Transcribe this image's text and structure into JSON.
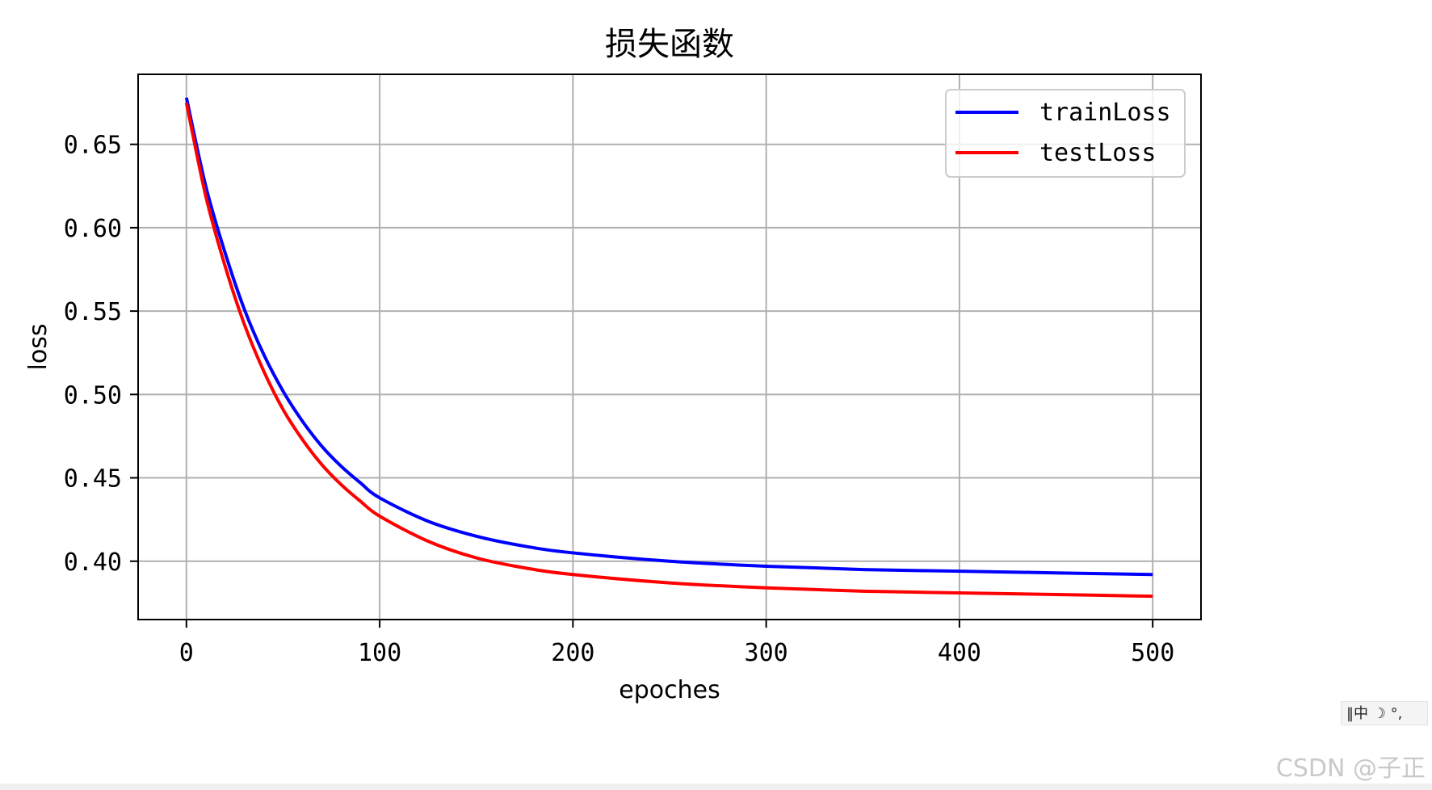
{
  "chart_data": {
    "type": "line",
    "title": "损失函数",
    "xlabel": "epoches",
    "ylabel": "loss",
    "xlim": [
      -25,
      525
    ],
    "ylim": [
      0.365,
      0.692
    ],
    "xticks": [
      0,
      100,
      200,
      300,
      400,
      500
    ],
    "xtick_labels": [
      "0",
      "100",
      "200",
      "300",
      "400",
      "500"
    ],
    "yticks": [
      0.4,
      0.45,
      0.5,
      0.55,
      0.6,
      0.65
    ],
    "ytick_labels": [
      "0.40",
      "0.45",
      "0.50",
      "0.55",
      "0.60",
      "0.65"
    ],
    "grid": true,
    "legend_position": "top-right",
    "series": [
      {
        "name": "trainLoss",
        "color": "#0000ff",
        "x": [
          0,
          10,
          20,
          30,
          40,
          50,
          60,
          70,
          80,
          90,
          100,
          125,
          150,
          175,
          200,
          250,
          300,
          350,
          400,
          450,
          500
        ],
        "values": [
          0.678,
          0.625,
          0.585,
          0.551,
          0.524,
          0.502,
          0.484,
          0.469,
          0.457,
          0.447,
          0.438,
          0.424,
          0.415,
          0.409,
          0.405,
          0.4,
          0.397,
          0.395,
          0.394,
          0.393,
          0.392
        ]
      },
      {
        "name": "testLoss",
        "color": "#ff0000",
        "x": [
          0,
          10,
          20,
          30,
          40,
          50,
          60,
          70,
          80,
          90,
          100,
          125,
          150,
          175,
          200,
          250,
          300,
          350,
          400,
          450,
          500
        ],
        "values": [
          0.675,
          0.619,
          0.577,
          0.542,
          0.514,
          0.491,
          0.473,
          0.458,
          0.446,
          0.436,
          0.427,
          0.412,
          0.402,
          0.396,
          0.392,
          0.387,
          0.384,
          0.382,
          0.381,
          0.38,
          0.379
        ]
      }
    ]
  },
  "overlays": {
    "ime_text": "‖中 ☽ °,",
    "watermark": "CSDN @子正"
  }
}
